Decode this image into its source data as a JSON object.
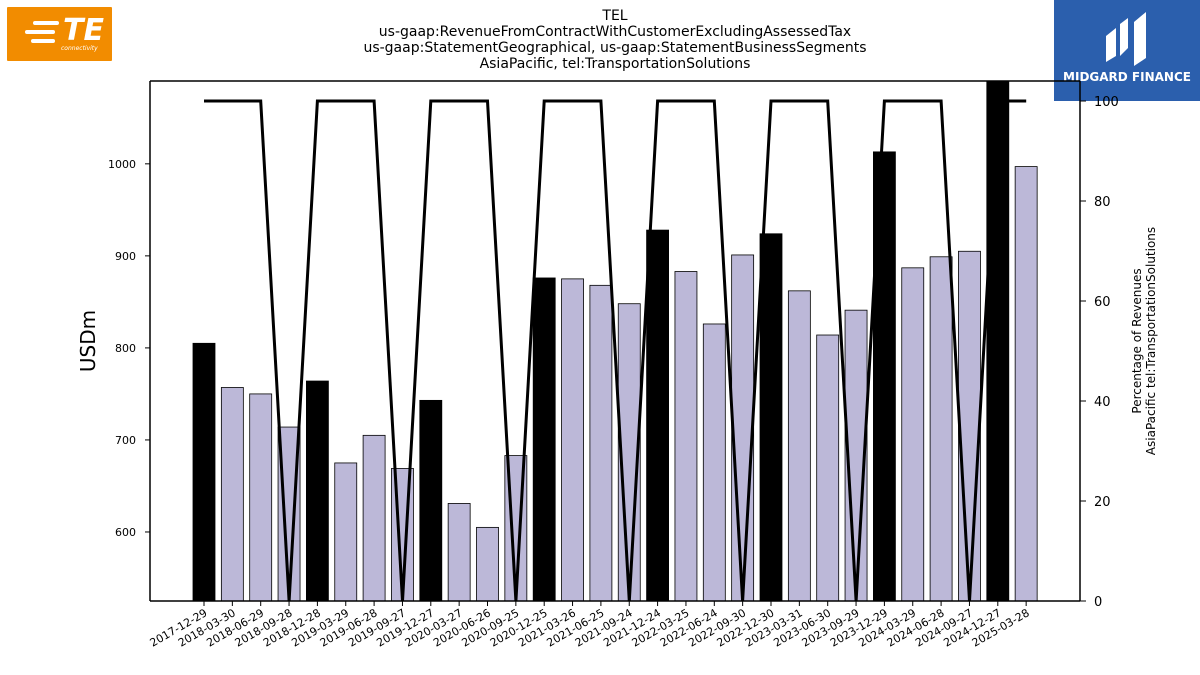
{
  "title_lines": [
    "TEL",
    "us-gaap:RevenueFromContractWithCustomerExcludingAssessedTax",
    "us-gaap:StatementGeographical, us-gaap:StatementBusinessSegments",
    "AsiaPacific, tel:TransportationSolutions"
  ],
  "logos": {
    "left_brand": "TE",
    "left_sub": "connectivity",
    "right_brand": "MIDGARD FINANCE"
  },
  "colors": {
    "bar_highlight": "#000000",
    "bar_normal": "#bcb8d8",
    "line": "#000000",
    "te_orange": "#f28c00",
    "midgard_blue": "#2b5fad"
  },
  "chart_data": {
    "type": "bar",
    "ylabel": "USDm",
    "y2label_lines": [
      "Percentage of Revenues",
      "AsiaPacific tel:TransportationSolutions"
    ],
    "ylim": [
      525,
      1090
    ],
    "y2lim": [
      0,
      104
    ],
    "yticks": [
      600,
      700,
      800,
      900,
      1000
    ],
    "y2ticks": [
      0,
      20,
      40,
      60,
      80,
      100
    ],
    "categories": [
      "2017-12-29",
      "2018-03-30",
      "2018-06-29",
      "2018-09-28",
      "2018-12-28",
      "2019-03-29",
      "2019-06-28",
      "2019-09-27",
      "2019-12-27",
      "2020-03-27",
      "2020-06-26",
      "2020-09-25",
      "2020-12-25",
      "2021-03-26",
      "2021-06-25",
      "2021-09-24",
      "2021-12-24",
      "2022-03-25",
      "2022-06-24",
      "2022-09-30",
      "2022-12-30",
      "2023-03-31",
      "2023-06-30",
      "2023-09-29",
      "2023-12-29",
      "2024-03-29",
      "2024-06-28",
      "2024-09-27",
      "2024-12-27",
      "2025-03-28"
    ],
    "series": [
      {
        "role": "bars",
        "values": [
          805,
          757,
          750,
          714,
          764,
          675,
          705,
          669,
          743,
          631,
          605,
          683,
          876,
          875,
          868,
          848,
          928,
          883,
          826,
          901,
          924,
          862,
          814,
          841,
          1013,
          887,
          899,
          905,
          1097,
          997
        ],
        "highlight": [
          true,
          false,
          false,
          false,
          true,
          false,
          false,
          false,
          true,
          false,
          false,
          false,
          true,
          false,
          false,
          false,
          true,
          false,
          false,
          false,
          true,
          false,
          false,
          false,
          true,
          false,
          false,
          false,
          true,
          false
        ]
      },
      {
        "role": "line_secondary_axis",
        "values": [
          100,
          100,
          100,
          0,
          100,
          100,
          100,
          0,
          100,
          100,
          100,
          0,
          100,
          100,
          100,
          0,
          100,
          100,
          100,
          0,
          100,
          100,
          100,
          0,
          100,
          100,
          100,
          0,
          100,
          100
        ]
      }
    ]
  }
}
